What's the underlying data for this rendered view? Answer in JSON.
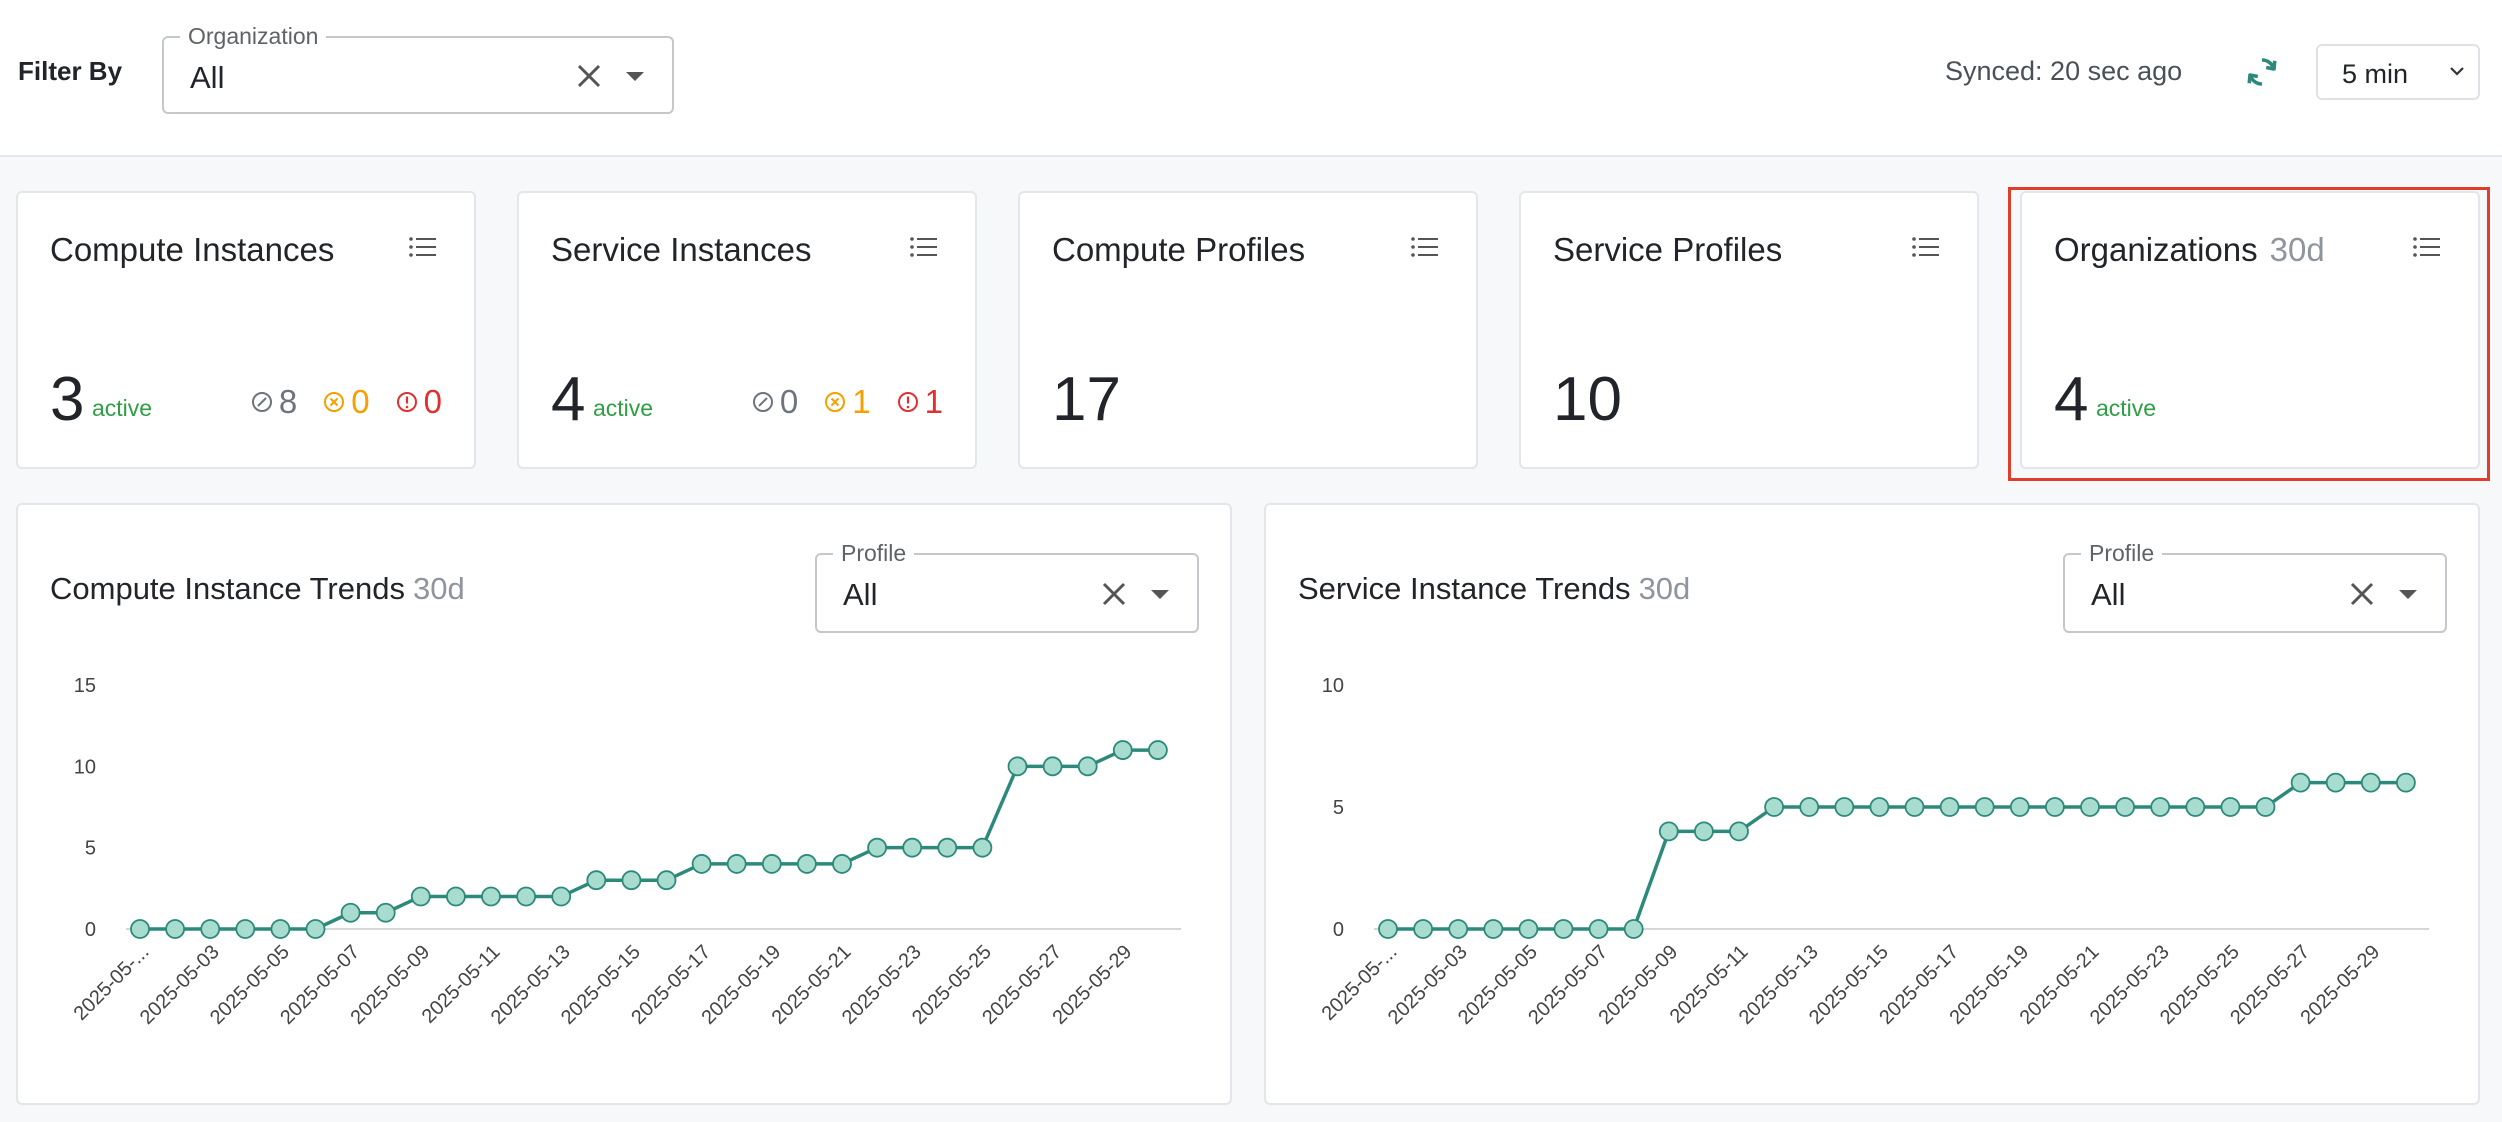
{
  "topbar": {
    "filter_label": "Filter By",
    "organization_select": {
      "legend": "Organization",
      "value": "All"
    },
    "synced_text": "Synced: 20 sec ago",
    "refresh_icon": "refresh-icon",
    "interval_value": "5 min"
  },
  "cards": [
    {
      "title": "Compute Instances",
      "count": "3",
      "active_label": "active",
      "stats": {
        "stopped": "8",
        "warning": "0",
        "error": "0"
      }
    },
    {
      "title": "Service Instances",
      "count": "4",
      "active_label": "active",
      "stats": {
        "stopped": "0",
        "warning": "1",
        "error": "1"
      }
    },
    {
      "title": "Compute Profiles",
      "count": "17"
    },
    {
      "title": "Service Profiles",
      "count": "10"
    },
    {
      "title": "Organizations",
      "subtitle": "30d",
      "count": "4",
      "active_label": "active"
    }
  ],
  "colors": {
    "active": "#2f9e44",
    "warning": "#f59f00",
    "error": "#e03131",
    "line": "#2d8a7b",
    "point_fill": "#a8dccf",
    "highlight": "#e03e2d"
  },
  "panels": [
    {
      "title": "Compute Instance Trends",
      "subtitle": "30d",
      "profile_select": {
        "legend": "Profile",
        "value": "All"
      }
    },
    {
      "title": "Service Instance Trends",
      "subtitle": "30d",
      "profile_select": {
        "legend": "Profile",
        "value": "All"
      }
    }
  ],
  "chart_data": [
    {
      "type": "line",
      "x_tick_labels": [
        "2025-05-...",
        "2025-05-03",
        "2025-05-05",
        "2025-05-07",
        "2025-05-09",
        "2025-05-11",
        "2025-05-13",
        "2025-05-15",
        "2025-05-17",
        "2025-05-19",
        "2025-05-21",
        "2025-05-23",
        "2025-05-25",
        "2025-05-27",
        "2025-05-29"
      ],
      "y_ticks": [
        0,
        5,
        10,
        15
      ],
      "ylim": [
        0,
        15
      ],
      "values": [
        0,
        0,
        0,
        0,
        0,
        0,
        1,
        1,
        2,
        2,
        2,
        2,
        2,
        3,
        3,
        3,
        4,
        4,
        4,
        4,
        4,
        5,
        5,
        5,
        5,
        10,
        10,
        10,
        11,
        11
      ]
    },
    {
      "type": "line",
      "x_tick_labels": [
        "2025-05-...",
        "2025-05-03",
        "2025-05-05",
        "2025-05-07",
        "2025-05-09",
        "2025-05-11",
        "2025-05-13",
        "2025-05-15",
        "2025-05-17",
        "2025-05-19",
        "2025-05-21",
        "2025-05-23",
        "2025-05-25",
        "2025-05-27",
        "2025-05-29"
      ],
      "y_ticks": [
        0,
        5,
        10
      ],
      "ylim": [
        0,
        10
      ],
      "values": [
        0,
        0,
        0,
        0,
        0,
        0,
        0,
        0,
        4,
        4,
        4,
        5,
        5,
        5,
        5,
        5,
        5,
        5,
        5,
        5,
        5,
        5,
        5,
        5,
        5,
        5,
        6,
        6,
        6,
        6
      ]
    }
  ]
}
